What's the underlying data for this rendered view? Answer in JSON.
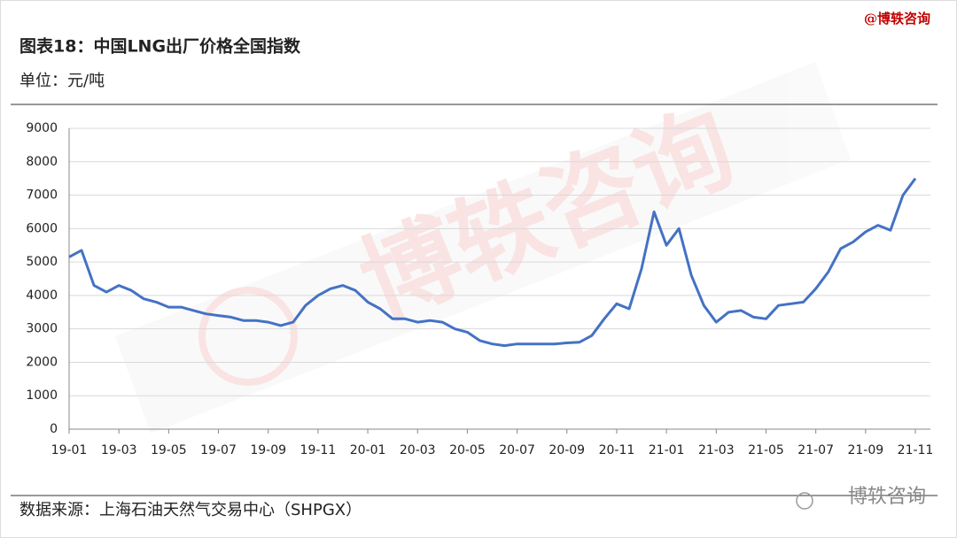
{
  "brand": "@博轶咨询",
  "unit": "单位：元/吨",
  "source": "数据来源：上海石油天然气交易中心（SHPGX）",
  "watermark": "博轶咨询",
  "footer_logo": "博轶咨询",
  "chart_data": {
    "type": "line",
    "title": "图表18：中国LNG出厂价格全国指数",
    "categories": [
      "19-01",
      null,
      null,
      null,
      "19-03",
      null,
      null,
      null,
      "19-05",
      null,
      null,
      null,
      "19-07",
      null,
      null,
      null,
      "19-09",
      null,
      null,
      null,
      "19-11",
      null,
      null,
      null,
      "20-01",
      null,
      null,
      null,
      "20-03",
      null,
      null,
      null,
      "20-05",
      null,
      null,
      null,
      "20-07",
      null,
      null,
      null,
      "20-09",
      null,
      null,
      null,
      "20-11",
      null,
      null,
      null,
      "21-01",
      null,
      null,
      null,
      "21-03",
      null,
      null,
      null,
      "21-05",
      null,
      null,
      null,
      "21-07",
      null,
      null,
      null,
      "21-09",
      null,
      null,
      null,
      "21-11"
    ],
    "series": [
      {
        "name": "中国LNG出厂价格全国指数",
        "color": "#4472c4",
        "values": [
          5150,
          5350,
          4300,
          4100,
          4300,
          4150,
          3900,
          3800,
          3650,
          3650,
          3550,
          3450,
          3400,
          3350,
          3250,
          3250,
          3200,
          3100,
          3200,
          3700,
          4000,
          4200,
          4300,
          4150,
          3800,
          3600,
          3300,
          3300,
          3200,
          3250,
          3200,
          3000,
          2900,
          2650,
          2550,
          2500,
          2550,
          2550,
          2550,
          2550,
          2580,
          2600,
          2800,
          3300,
          3750,
          3600,
          4800,
          6500,
          5500,
          6000,
          4600,
          3700,
          3200,
          3500,
          3550,
          3350,
          3300,
          3700,
          3750,
          3800,
          4200,
          4700,
          5400,
          5600,
          5900,
          6100,
          5950,
          7000,
          7500
        ]
      }
    ],
    "ylim": [
      0,
      9000
    ],
    "yticks": [
      0,
      1000,
      2000,
      3000,
      4000,
      5000,
      6000,
      7000,
      8000,
      9000
    ],
    "grid": true
  }
}
